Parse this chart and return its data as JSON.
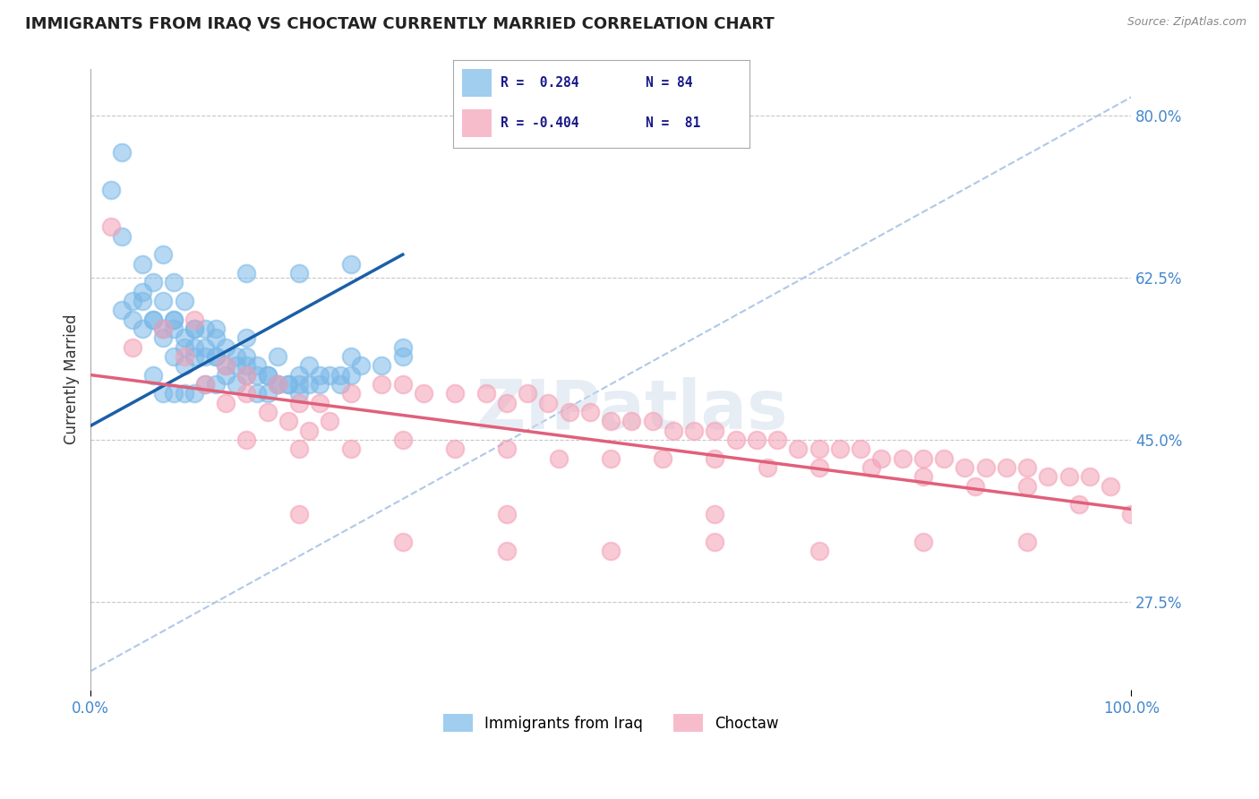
{
  "title": "IMMIGRANTS FROM IRAQ VS CHOCTAW CURRENTLY MARRIED CORRELATION CHART",
  "source_text": "Source: ZipAtlas.com",
  "ylabel": "Currently Married",
  "xlim": [
    0.0,
    100.0
  ],
  "ylim": [
    18.0,
    85.0
  ],
  "yticks": [
    27.5,
    45.0,
    62.5,
    80.0
  ],
  "ytick_labels": [
    "27.5%",
    "45.0%",
    "62.5%",
    "80.0%"
  ],
  "xtick_labels": [
    "0.0%",
    "100.0%"
  ],
  "legend_r1": "R =  0.284",
  "legend_n1": "N = 84",
  "legend_r2": "R = -0.404",
  "legend_n2": "N =  81",
  "blue_color": "#7ab8e8",
  "pink_color": "#f4a0b5",
  "blue_line_color": "#1a5fa8",
  "pink_line_color": "#e0607a",
  "dashed_line_color": "#b0c8e8",
  "watermark": "ZIPatlas",
  "background_color": "#ffffff",
  "grid_color": "#c8c8c8",
  "blue_scatter_x": [
    2,
    3,
    3,
    4,
    5,
    5,
    5,
    6,
    6,
    6,
    7,
    7,
    7,
    8,
    8,
    8,
    8,
    9,
    9,
    9,
    9,
    10,
    10,
    10,
    11,
    11,
    11,
    12,
    12,
    12,
    13,
    13,
    14,
    14,
    15,
    15,
    16,
    16,
    17,
    17,
    18,
    19,
    20,
    20,
    21,
    22,
    23,
    24,
    25,
    4,
    6,
    7,
    8,
    9,
    10,
    11,
    12,
    13,
    14,
    15,
    16,
    17,
    18,
    19,
    20,
    22,
    24,
    26,
    28,
    30,
    15,
    20,
    25,
    3,
    5,
    8,
    10,
    12,
    15,
    18,
    21,
    25,
    30,
    7
  ],
  "blue_scatter_y": [
    72,
    67,
    76,
    60,
    64,
    61,
    57,
    62,
    58,
    52,
    65,
    60,
    56,
    62,
    58,
    54,
    50,
    60,
    56,
    53,
    50,
    57,
    54,
    50,
    57,
    54,
    51,
    57,
    54,
    51,
    55,
    52,
    54,
    51,
    54,
    52,
    53,
    50,
    52,
    50,
    51,
    51,
    52,
    50,
    51,
    51,
    52,
    51,
    52,
    58,
    58,
    57,
    58,
    55,
    55,
    55,
    54,
    53,
    53,
    53,
    52,
    52,
    51,
    51,
    51,
    52,
    52,
    53,
    53,
    54,
    63,
    63,
    64,
    59,
    60,
    57,
    57,
    56,
    56,
    54,
    53,
    54,
    55,
    50
  ],
  "pink_scatter_x": [
    2,
    4,
    7,
    9,
    11,
    13,
    15,
    17,
    19,
    21,
    23,
    10,
    13,
    15,
    18,
    20,
    22,
    25,
    28,
    30,
    32,
    35,
    38,
    40,
    42,
    44,
    46,
    48,
    50,
    52,
    54,
    56,
    58,
    60,
    62,
    64,
    66,
    68,
    70,
    72,
    74,
    76,
    78,
    80,
    82,
    84,
    86,
    88,
    90,
    92,
    94,
    96,
    98,
    100,
    15,
    20,
    25,
    30,
    35,
    40,
    45,
    50,
    55,
    60,
    65,
    70,
    75,
    80,
    85,
    90,
    95,
    30,
    40,
    50,
    60,
    70,
    80,
    90,
    20,
    40,
    60
  ],
  "pink_scatter_y": [
    68,
    55,
    57,
    54,
    51,
    49,
    50,
    48,
    47,
    46,
    47,
    58,
    53,
    52,
    51,
    49,
    49,
    50,
    51,
    51,
    50,
    50,
    50,
    49,
    50,
    49,
    48,
    48,
    47,
    47,
    47,
    46,
    46,
    46,
    45,
    45,
    45,
    44,
    44,
    44,
    44,
    43,
    43,
    43,
    43,
    42,
    42,
    42,
    42,
    41,
    41,
    41,
    40,
    37,
    45,
    44,
    44,
    45,
    44,
    44,
    43,
    43,
    43,
    43,
    42,
    42,
    42,
    41,
    40,
    40,
    38,
    34,
    33,
    33,
    34,
    33,
    34,
    34,
    37,
    37,
    37
  ],
  "blue_trend_x": [
    0,
    30
  ],
  "blue_trend_y": [
    46.5,
    65.0
  ],
  "pink_trend_x": [
    0,
    100
  ],
  "pink_trend_y": [
    52.0,
    37.5
  ],
  "dashed_line_x": [
    0,
    100
  ],
  "dashed_line_y": [
    20,
    82
  ]
}
